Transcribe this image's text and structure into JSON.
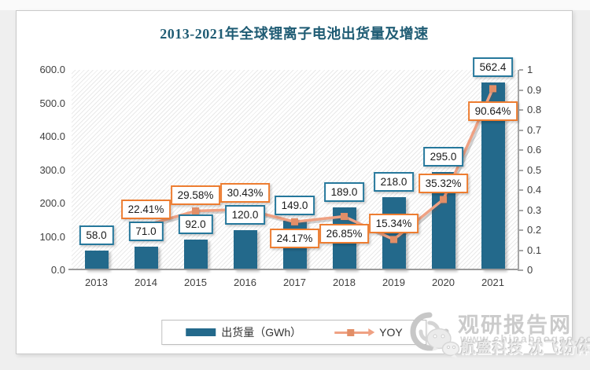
{
  "chart": {
    "legend": {
      "shipments_label": "出货量（GWh）",
      "yoy_label": "YOY"
    }
  },
  "watermark": {
    "site_name": "观研报告网",
    "site_url": "www.chinabaogao.com",
    "overlay_text": "航盛科技 沈飞粉体"
  },
  "chart_data": {
    "type": "bar",
    "title": "2013-2021年全球锂离子电池出货量及增速",
    "categories": [
      "2013",
      "2014",
      "2015",
      "2016",
      "2017",
      "2018",
      "2019",
      "2020",
      "2021"
    ],
    "series": [
      {
        "name": "出货量（GWh）",
        "type": "bar",
        "axis": "left",
        "values": [
          58.0,
          71.0,
          92.0,
          120.0,
          149.0,
          189.0,
          218.0,
          295.0,
          562.4
        ],
        "labels": [
          "58.0",
          "71.0",
          "92.0",
          "120.0",
          "149.0",
          "189.0",
          "218.0",
          "295.0",
          "562.4"
        ]
      },
      {
        "name": "YOY",
        "type": "line",
        "axis": "right",
        "values": [
          null,
          0.2241,
          0.2958,
          0.3043,
          0.2417,
          0.2685,
          0.1534,
          0.3532,
          0.9064
        ],
        "labels": [
          null,
          "22.41%",
          "29.58%",
          "30.43%",
          "24.17%",
          "26.85%",
          "15.34%",
          "35.32%",
          "90.64%"
        ],
        "label_side": [
          null,
          "above",
          "above",
          "above",
          "below",
          "below",
          "above",
          "above",
          "below-far"
        ]
      }
    ],
    "left_axis": {
      "min": 0,
      "max": 600,
      "tick_labels": [
        "0.0",
        "100.0",
        "200.0",
        "300.0",
        "400.0",
        "500.0",
        "600.0"
      ]
    },
    "right_axis": {
      "min": 0,
      "max": 1,
      "tick_labels": [
        "0",
        "0.1",
        "0.2",
        "0.3",
        "0.4",
        "0.5",
        "0.6",
        "0.7",
        "0.8",
        "0.9",
        "1"
      ]
    },
    "legend_position": "bottom",
    "grid": false,
    "plot_background": "diagonal-hatch",
    "colors": {
      "bar": "#23698b",
      "line": "#efa183",
      "marker": "#e28e67",
      "bar_label_border": "#26789c",
      "yoy_label_border": "#ed7d31",
      "title": "#1f5c74"
    }
  }
}
